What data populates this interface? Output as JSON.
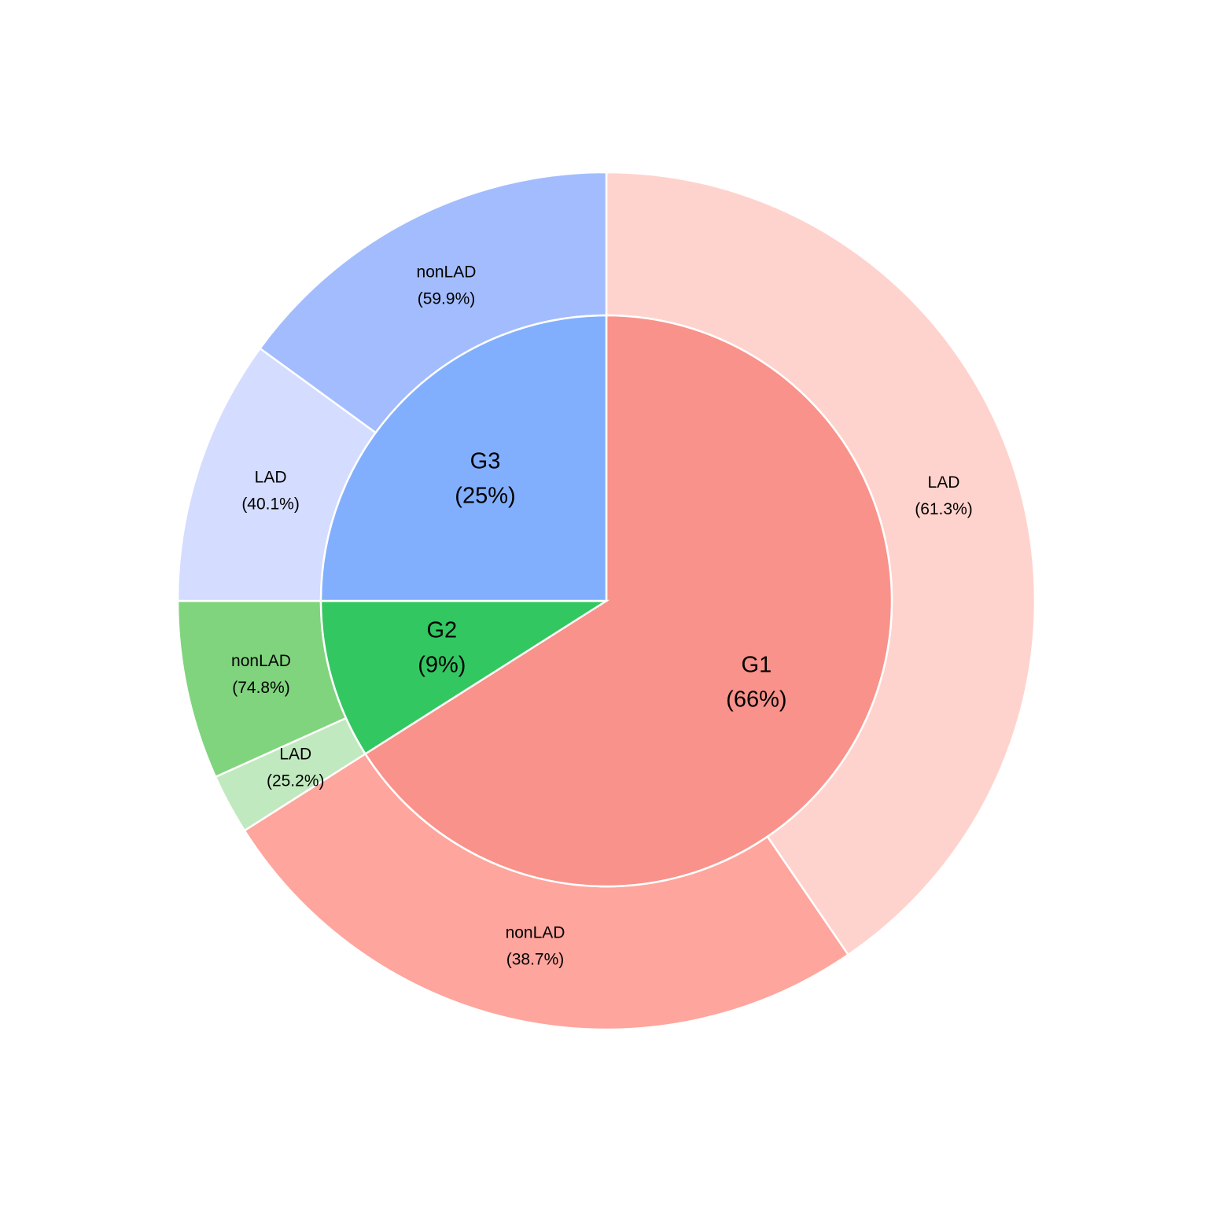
{
  "chart_data": {
    "type": "pie",
    "title": "",
    "inner": [
      {
        "group": "G1",
        "label": "G1",
        "pct": "(66%)",
        "value": 66,
        "color": "#f9928a"
      },
      {
        "group": "G2",
        "label": "G2",
        "pct": "(9%)",
        "value": 9,
        "color": "#33c762"
      },
      {
        "group": "G3",
        "label": "G3",
        "pct": "(25%)",
        "value": 25,
        "color": "#82affd"
      }
    ],
    "outer": [
      {
        "group": "G1",
        "label": "LAD",
        "pct": "(61.3%)",
        "value": 61.3,
        "color": "#ffd3cd"
      },
      {
        "group": "G1",
        "label": "nonLAD",
        "pct": "(38.7%)",
        "value": 38.7,
        "color": "#fea59d"
      },
      {
        "group": "G2",
        "label": "LAD",
        "pct": "(25.2%)",
        "value": 25.2,
        "color": "#c1e9bf"
      },
      {
        "group": "G2",
        "label": "nonLAD",
        "pct": "(74.8%)",
        "value": 74.8,
        "color": "#80d47e"
      },
      {
        "group": "G3",
        "label": "LAD",
        "pct": "(40.1%)",
        "value": 40.1,
        "color": "#d4dcff"
      },
      {
        "group": "G3",
        "label": "nonLAD",
        "pct": "(59.9%)",
        "value": 59.9,
        "color": "#a3bcfe"
      }
    ]
  }
}
